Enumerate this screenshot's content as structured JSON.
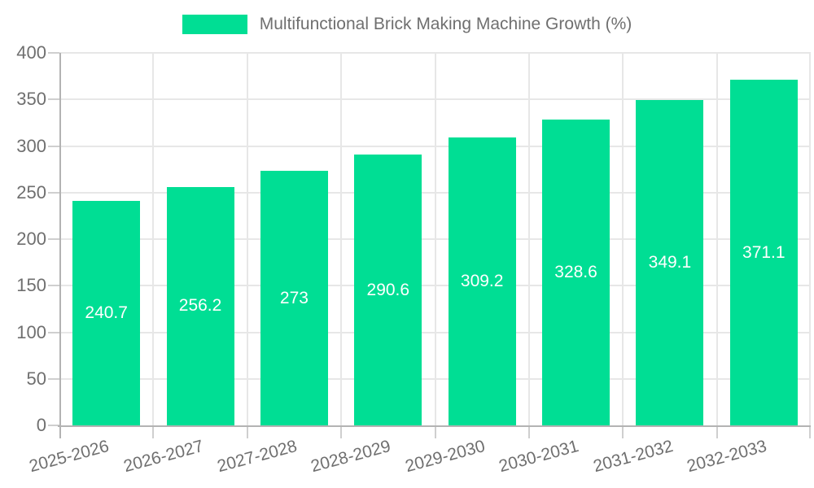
{
  "chart_data": {
    "type": "bar",
    "title": "Multifunctional Brick Making Machine Growth (%)",
    "legend": {
      "position": "top",
      "entries": [
        "Multifunctional Brick Making Machine Growth (%)"
      ]
    },
    "categories": [
      "2025-2026",
      "2026-2027",
      "2027-2028",
      "2028-2029",
      "2029-2030",
      "2030-2031",
      "2031-2032",
      "2032-2033"
    ],
    "values": [
      240.7,
      256.2,
      273,
      290.6,
      309.2,
      328.6,
      349.1,
      371.1
    ],
    "value_labels": [
      "240.7",
      "256.2",
      "273",
      "290.6",
      "309.2",
      "328.6",
      "349.1",
      "371.1"
    ],
    "xlabel": "",
    "ylabel": "",
    "ylim": [
      0,
      400
    ],
    "yticks": [
      0,
      50,
      100,
      150,
      200,
      250,
      300,
      350,
      400
    ],
    "grid": true,
    "colors": {
      "bar": "#00DE94",
      "bar_label_text": "#FFFFFF",
      "axis_text": "#6F6F6F",
      "grid_line": "#E7E7E7",
      "axis_line": "#B3B3B3",
      "tick_mark": "#CFCFCF",
      "background": "#FFFFFF"
    }
  }
}
